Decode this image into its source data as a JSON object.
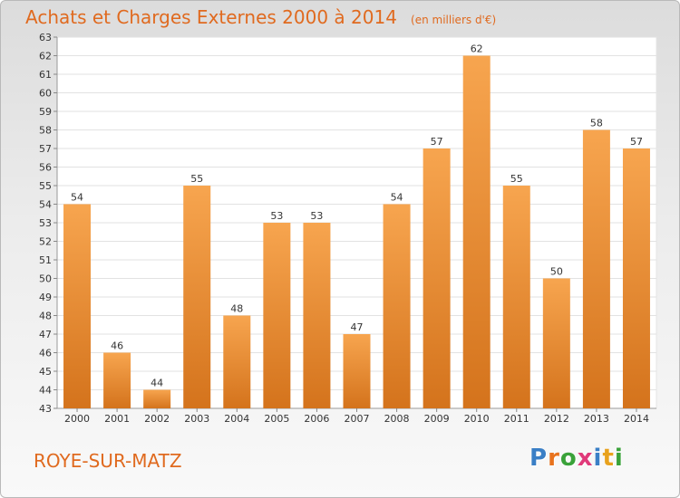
{
  "header": {
    "title": "Achats et Charges Externes 2000 à 2014",
    "subtitle": "(en milliers d'€)"
  },
  "footer": {
    "town": "ROYE-SUR-MATZ",
    "logo": "Proxiti",
    "logo_colors": [
      "#3a7fc6",
      "#e8731e",
      "#3aa23a",
      "#e03a7a",
      "#3a7fc6",
      "#e8a21e",
      "#3aa23a"
    ]
  },
  "chart_data": {
    "type": "bar",
    "categories": [
      "2000",
      "2001",
      "2002",
      "2003",
      "2004",
      "2005",
      "2006",
      "2007",
      "2008",
      "2009",
      "2010",
      "2011",
      "2012",
      "2013",
      "2014"
    ],
    "values": [
      54,
      46,
      44,
      55,
      48,
      53,
      53,
      47,
      54,
      57,
      62,
      55,
      50,
      58,
      57
    ],
    "data_labels": [
      "54",
      "46",
      "44",
      "55",
      "48",
      "53",
      "53",
      "47",
      "54",
      "57",
      "62",
      "55",
      "50",
      "58",
      "57"
    ],
    "yticks": [
      "43",
      "44",
      "45",
      "46",
      "47",
      "48",
      "49",
      "50",
      "51",
      "52",
      "53",
      "54",
      "55",
      "56",
      "57",
      "58",
      "59",
      "60",
      "61",
      "62",
      "63"
    ],
    "ylim": [
      43,
      63
    ],
    "grid": true,
    "bar_color_top": "#f7a54f",
    "bar_color_bottom": "#d4731c",
    "text_color": "#333333"
  }
}
